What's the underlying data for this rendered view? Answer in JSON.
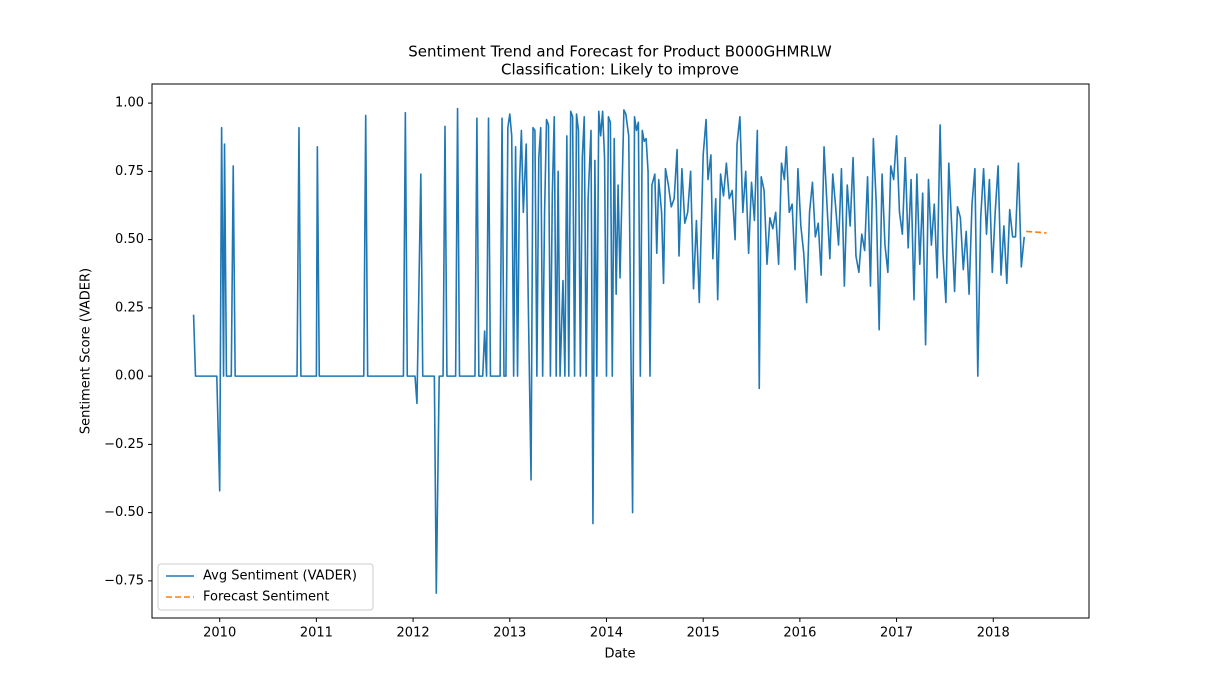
{
  "chart_data": {
    "type": "line",
    "title": "Sentiment Trend and Forecast for Product B000GHMRLW",
    "subtitle": "Classification: Likely to improve",
    "x_label": "Date",
    "y_label": "Sentiment Score (VADER)",
    "xlim": [
      2009.3,
      2018.99
    ],
    "ylim": [
      -0.886,
      1.07
    ],
    "xticks": [
      2010,
      2011,
      2012,
      2013,
      2014,
      2015,
      2016,
      2017,
      2018
    ],
    "yticks": [
      {
        "value": -0.75,
        "label": "−0.75"
      },
      {
        "value": -0.5,
        "label": "−0.50"
      },
      {
        "value": -0.25,
        "label": "−0.25"
      },
      {
        "value": 0,
        "label": "0.00"
      },
      0.25,
      {
        "value": 0.5,
        "label": "0.50"
      },
      0.75,
      {
        "value": 1,
        "label": "1.00"
      }
    ],
    "grid": false,
    "legend": "lower left",
    "series": [
      {
        "name": "Avg Sentiment (VADER)",
        "color": "#1f77b4",
        "linestyle": "solid",
        "x": [
          2009.73,
          2009.75,
          2009.97,
          2010.0,
          2010.02,
          2010.04,
          2010.05,
          2010.07,
          2010.12,
          2010.14,
          2010.16,
          2010.8,
          2010.82,
          2010.84,
          2011.0,
          2011.01,
          2011.03,
          2011.49,
          2011.51,
          2011.53,
          2011.9,
          2011.92,
          2011.94,
          2012.02,
          2012.04,
          2012.08,
          2012.1,
          2012.22,
          2012.24,
          2012.27,
          2012.31,
          2012.33,
          2012.35,
          2012.44,
          2012.46,
          2012.48,
          2012.64,
          2012.66,
          2012.68,
          2012.72,
          2012.74,
          2012.76,
          2012.78,
          2012.8,
          2012.9,
          2012.92,
          2012.94,
          2012.96,
          2012.98,
          2013.0,
          2013.02,
          2013.04,
          2013.06,
          2013.08,
          2013.1,
          2013.12,
          2013.14,
          2013.17,
          2013.19,
          2013.22,
          2013.24,
          2013.26,
          2013.28,
          2013.3,
          2013.32,
          2013.34,
          2013.36,
          2013.38,
          2013.4,
          2013.42,
          2013.44,
          2013.46,
          2013.48,
          2013.5,
          2013.52,
          2013.55,
          2013.57,
          2013.59,
          2013.61,
          2013.63,
          2013.65,
          2013.67,
          2013.69,
          2013.71,
          2013.73,
          2013.75,
          2013.77,
          2013.79,
          2013.81,
          2013.84,
          2013.86,
          2013.88,
          2013.9,
          2013.92,
          2013.94,
          2013.96,
          2013.98,
          2014.0,
          2014.02,
          2014.04,
          2014.06,
          2014.08,
          2014.1,
          2014.12,
          2014.14,
          2014.18,
          2014.2,
          2014.23,
          2014.27,
          2014.29,
          2014.31,
          2014.33,
          2014.35,
          2014.37,
          2014.39,
          2014.41,
          2014.43,
          2014.45,
          2014.47,
          2014.5,
          2014.52,
          2014.54,
          2014.57,
          2014.59,
          2014.61,
          2014.64,
          2014.67,
          2014.7,
          2014.73,
          2014.75,
          2014.78,
          2014.81,
          2014.84,
          2014.87,
          2014.9,
          2014.93,
          2014.96,
          2015.0,
          2015.03,
          2015.05,
          2015.08,
          2015.1,
          2015.13,
          2015.15,
          2015.18,
          2015.21,
          2015.24,
          2015.27,
          2015.3,
          2015.33,
          2015.35,
          2015.38,
          2015.41,
          2015.44,
          2015.47,
          2015.5,
          2015.53,
          2015.56,
          2015.58,
          2015.6,
          2015.63,
          2015.66,
          2015.69,
          2015.72,
          2015.75,
          2015.78,
          2015.81,
          2015.84,
          2015.86,
          2015.89,
          2015.92,
          2015.95,
          2015.98,
          2016.01,
          2016.04,
          2016.07,
          2016.1,
          2016.13,
          2016.16,
          2016.19,
          2016.22,
          2016.25,
          2016.28,
          2016.31,
          2016.34,
          2016.37,
          2016.4,
          2016.43,
          2016.46,
          2016.49,
          2016.52,
          2016.55,
          2016.58,
          2016.61,
          2016.64,
          2016.67,
          2016.7,
          2016.73,
          2016.76,
          2016.79,
          2016.82,
          2016.85,
          2016.88,
          2016.91,
          2016.94,
          2016.97,
          2017.0,
          2017.03,
          2017.06,
          2017.09,
          2017.12,
          2017.15,
          2017.18,
          2017.21,
          2017.24,
          2017.27,
          2017.3,
          2017.33,
          2017.36,
          2017.39,
          2017.42,
          2017.45,
          2017.48,
          2017.51,
          2017.54,
          2017.57,
          2017.6,
          2017.63,
          2017.66,
          2017.69,
          2017.72,
          2017.75,
          2017.78,
          2017.81,
          2017.84,
          2017.87,
          2017.9,
          2017.93,
          2017.96,
          2017.99,
          2018.02,
          2018.05,
          2018.08,
          2018.11,
          2018.14,
          2018.17,
          2018.2,
          2018.23,
          2018.26,
          2018.29,
          2018.32
        ],
        "values": [
          0.225,
          0,
          0,
          -0.42,
          0.91,
          0,
          0.85,
          0,
          0,
          0.77,
          0,
          0,
          0.91,
          0,
          0,
          0.84,
          0,
          0,
          0.955,
          0,
          0,
          0.965,
          0,
          0,
          -0.1,
          0.74,
          0,
          0,
          -0.795,
          0,
          0,
          0.915,
          0,
          0,
          0.98,
          0,
          0,
          0.945,
          0,
          0,
          0.165,
          0,
          0.945,
          0,
          0,
          0.945,
          0,
          0,
          0.91,
          0.96,
          0.88,
          0,
          0.84,
          0,
          0.7,
          0.9,
          0.6,
          0.85,
          0.3,
          -0.38,
          0.91,
          0.9,
          0,
          0.8,
          0.91,
          0,
          0.6,
          0.94,
          0.92,
          0,
          0.67,
          0.95,
          0,
          0.75,
          0,
          0.35,
          0,
          0.88,
          0,
          0.97,
          0.95,
          0,
          0.96,
          0.9,
          0,
          0.8,
          0.95,
          0,
          0.65,
          0.9,
          -0.54,
          0.79,
          0,
          0.97,
          0.88,
          0.97,
          0.8,
          0,
          0.95,
          0.93,
          0,
          0.87,
          0.3,
          0.7,
          0.36,
          0.975,
          0.96,
          0.88,
          -0.5,
          0.95,
          0.9,
          0.93,
          0,
          0.9,
          0.86,
          0.87,
          0.75,
          0,
          0.7,
          0.74,
          0.45,
          0.72,
          0.6,
          0.34,
          0.76,
          0.7,
          0.62,
          0.65,
          0.83,
          0.44,
          0.76,
          0.56,
          0.6,
          0.75,
          0.32,
          0.57,
          0.27,
          0.81,
          0.94,
          0.72,
          0.81,
          0.43,
          0.65,
          0.28,
          0.74,
          0.66,
          0.78,
          0.65,
          0.68,
          0.5,
          0.85,
          0.95,
          0.6,
          0.75,
          0.45,
          0.71,
          0.57,
          0.9,
          -0.045,
          0.73,
          0.68,
          0.41,
          0.58,
          0.54,
          0.6,
          0.41,
          0.78,
          0.72,
          0.84,
          0.6,
          0.63,
          0.39,
          0.76,
          0.55,
          0.45,
          0.27,
          0.6,
          0.71,
          0.51,
          0.56,
          0.37,
          0.84,
          0.63,
          0.43,
          0.74,
          0.62,
          0.48,
          0.76,
          0.33,
          0.7,
          0.55,
          0.8,
          0.44,
          0.38,
          0.52,
          0.46,
          0.73,
          0.33,
          0.87,
          0.63,
          0.17,
          0.74,
          0.48,
          0.38,
          0.77,
          0.72,
          0.88,
          0.6,
          0.52,
          0.8,
          0.47,
          0.72,
          0.28,
          0.74,
          0.41,
          0.67,
          0.115,
          0.72,
          0.48,
          0.63,
          0.36,
          0.92,
          0.45,
          0.27,
          0.78,
          0.55,
          0.31,
          0.62,
          0.58,
          0.39,
          0.53,
          0.3,
          0.63,
          0.76,
          0.0,
          0.58,
          0.76,
          0.52,
          0.72,
          0.38,
          0.6,
          0.77,
          0.37,
          0.55,
          0.34,
          0.61,
          0.51,
          0.51,
          0.78,
          0.4,
          0.51
        ]
      },
      {
        "name": "Forecast Sentiment",
        "color": "#ff7f0e",
        "linestyle": "dashed",
        "x": [
          2018.34,
          2018.42,
          2018.5,
          2018.55
        ],
        "values": [
          0.53,
          0.528,
          0.526,
          0.524
        ]
      }
    ]
  }
}
